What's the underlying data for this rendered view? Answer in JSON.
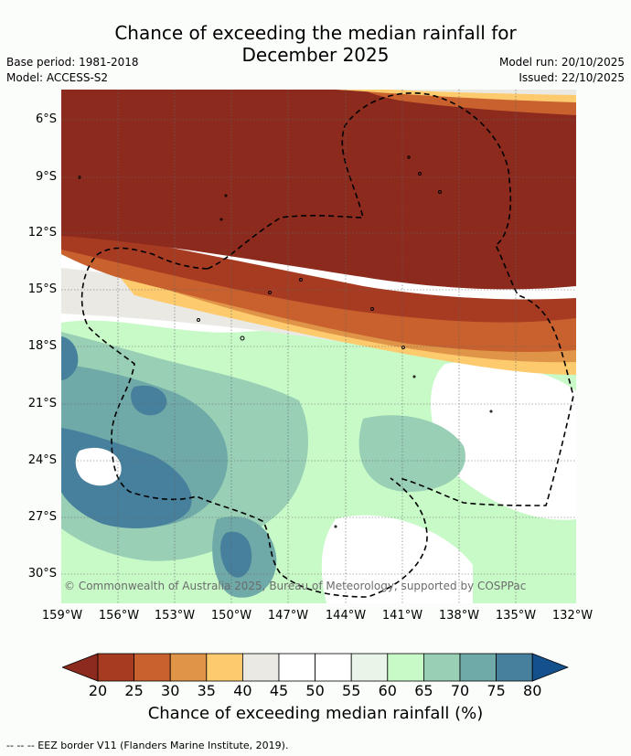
{
  "header": {
    "title_line1": "Chance of exceeding the median rainfall for",
    "title_line2": "December 2025",
    "base_period": "Base period: 1981-2018",
    "model": "Model: ACCESS-S2",
    "model_run": "Model run: 20/10/2025",
    "issued": "Issued: 22/10/2025"
  },
  "map": {
    "lat_labels": [
      "6°S",
      "9°S",
      "12°S",
      "15°S",
      "18°S",
      "21°S",
      "24°S",
      "27°S",
      "30°S"
    ],
    "lon_labels": [
      "159°W",
      "156°W",
      "153°W",
      "150°W",
      "147°W",
      "144°W",
      "141°W",
      "138°W",
      "135°W",
      "132°W"
    ],
    "copyright": "© Commonwealth of Australia 2025, Bureau of Meteorology, supported by COSPPac",
    "palette": {
      "lt20": "#8b2a1d",
      "20_25": "#a63b22",
      "25_30": "#c8612e",
      "30_35": "#df9447",
      "35_40": "#fdcb6e",
      "40_45": "#ebe9e4",
      "45_55": "#ffffff",
      "55_60": "#eaf5ea",
      "60_65": "#c8fac8",
      "65_70": "#98cfb5",
      "70_75": "#6fa9a8",
      "75_80": "#46809c",
      "gt80": "#13508c"
    }
  },
  "colorbar": {
    "ticks": [
      "20",
      "25",
      "30",
      "35",
      "40",
      "45",
      "50",
      "55",
      "60",
      "65",
      "70",
      "75",
      "80"
    ],
    "colors": [
      "#ebe9e4",
      "#ffffff",
      "#ffffff",
      "#eaf5ea",
      "#c8fac8",
      "#98cfb5",
      "#6fa9a8",
      "#46809c"
    ],
    "title": "Chance of exceeding median rainfall (%)"
  },
  "legend": {
    "eez_text": "--  --  -- EEZ border V11 (Flanders Marine Institute, 2019)."
  }
}
